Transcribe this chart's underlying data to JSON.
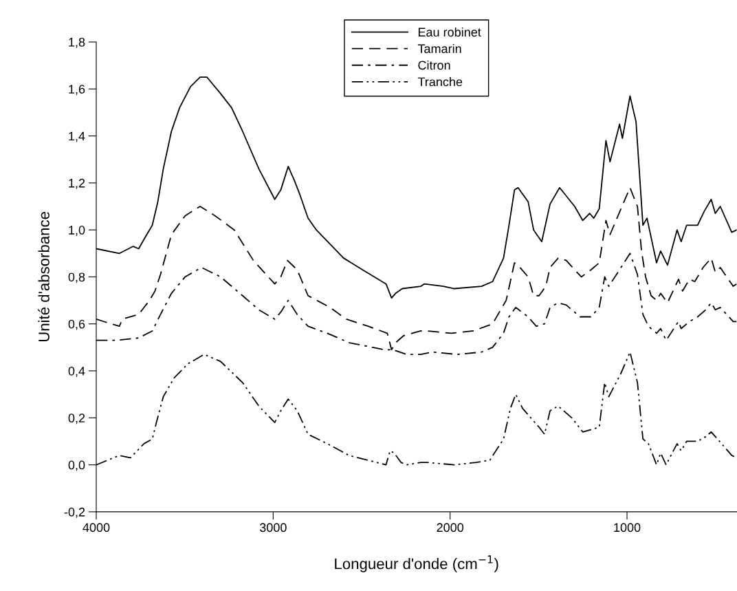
{
  "chart_data": {
    "type": "line",
    "xlabel": "Longueur d'onde (cm$^{−1}$)",
    "ylabel": "Unité d'absorbance",
    "xlim": [
      4000,
      380
    ],
    "xticks": [
      4000,
      3000,
      2000,
      1000
    ],
    "ylim": [
      -0.2,
      1.8
    ],
    "yticks": [
      {
        "value": -0.2,
        "label": "-0,2"
      },
      {
        "value": 0,
        "label": "0,0"
      },
      {
        "value": 0.2,
        "label": "0,2"
      },
      {
        "value": 0.4,
        "label": "0,4"
      },
      {
        "value": 0.6,
        "label": "0,6"
      },
      {
        "value": 0.8,
        "label": "0,8"
      },
      {
        "value": 1.0,
        "label": "1,0"
      },
      {
        "value": 1.2,
        "label": "1,2"
      },
      {
        "value": 1.4,
        "label": "1,4"
      },
      {
        "value": 1.6,
        "label": "1,6"
      },
      {
        "value": 1.8,
        "label": "1,8"
      }
    ],
    "grid": false,
    "legend": "top",
    "marker": "none",
    "series": [
      {
        "name": "Eau robinet",
        "color": "#000000",
        "line_style": "solid",
        "x": [
          4000,
          3869,
          3791,
          3760,
          3730,
          3683,
          3652,
          3621,
          3575,
          3529,
          3467,
          3413,
          3374,
          3297,
          3235,
          3173,
          3081,
          2991,
          2957,
          2915,
          2880,
          2849,
          2803,
          2756,
          2679,
          2602,
          2494,
          2362,
          2331,
          2308,
          2270,
          2165,
          2146,
          2038,
          1976,
          1822,
          1760,
          1698,
          1667,
          1636,
          1616,
          1559,
          1528,
          1482,
          1435,
          1381,
          1296,
          1250,
          1211,
          1188,
          1157,
          1119,
          1096,
          1042,
          1026,
          983,
          949,
          910,
          887,
          833,
          810,
          771,
          717,
          694,
          663,
          601,
          563,
          524,
          501,
          473,
          408,
          380
        ],
        "values": [
          0.92,
          0.9,
          0.93,
          0.92,
          0.96,
          1.02,
          1.12,
          1.26,
          1.42,
          1.52,
          1.61,
          1.65,
          1.65,
          1.58,
          1.52,
          1.42,
          1.26,
          1.13,
          1.17,
          1.27,
          1.21,
          1.15,
          1.05,
          1.0,
          0.94,
          0.88,
          0.83,
          0.77,
          0.71,
          0.73,
          0.75,
          0.76,
          0.77,
          0.76,
          0.75,
          0.76,
          0.78,
          0.88,
          1.02,
          1.17,
          1.18,
          1.12,
          1.0,
          0.95,
          1.11,
          1.18,
          1.1,
          1.04,
          1.07,
          1.05,
          1.09,
          1.38,
          1.29,
          1.45,
          1.39,
          1.57,
          1.46,
          1.02,
          1.05,
          0.86,
          0.91,
          0.85,
          1.0,
          0.95,
          1.02,
          1.02,
          1.08,
          1.13,
          1.07,
          1.1,
          0.99,
          1.0
        ]
      },
      {
        "name": "Tamarin",
        "color": "#000000",
        "line_style": "dashed",
        "x": [
          4000,
          3915,
          3869,
          3853,
          3761,
          3699,
          3668,
          3637,
          3575,
          3498,
          3413,
          3328,
          3220,
          3112,
          2991,
          2957,
          2919,
          2864,
          2803,
          2679,
          2586,
          2463,
          2355,
          2331,
          2308,
          2262,
          2165,
          2131,
          1992,
          1868,
          1760,
          1683,
          1636,
          1605,
          1559,
          1528,
          1497,
          1459,
          1435,
          1389,
          1343,
          1296,
          1258,
          1204,
          1157,
          1119,
          1096,
          1034,
          983,
          941,
          918,
          895,
          864,
          833,
          810,
          771,
          709,
          686,
          647,
          617,
          570,
          524,
          501,
          473,
          400,
          380
        ],
        "values": [
          0.62,
          0.6,
          0.59,
          0.62,
          0.64,
          0.7,
          0.74,
          0.81,
          0.98,
          1.06,
          1.1,
          1.06,
          1.0,
          0.87,
          0.77,
          0.8,
          0.87,
          0.83,
          0.72,
          0.67,
          0.62,
          0.59,
          0.56,
          0.49,
          0.52,
          0.55,
          0.57,
          0.57,
          0.56,
          0.57,
          0.6,
          0.7,
          0.86,
          0.84,
          0.8,
          0.72,
          0.72,
          0.76,
          0.84,
          0.88,
          0.87,
          0.83,
          0.8,
          0.83,
          0.86,
          1.04,
          0.98,
          1.09,
          1.18,
          1.1,
          0.91,
          0.8,
          0.72,
          0.7,
          0.73,
          0.69,
          0.79,
          0.74,
          0.79,
          0.78,
          0.84,
          0.88,
          0.82,
          0.84,
          0.76,
          0.77
        ]
      },
      {
        "name": "Citron",
        "color": "#000000",
        "line_style": "dashdot",
        "x": [
          4000,
          3884,
          3761,
          3683,
          3637,
          3575,
          3498,
          3405,
          3297,
          3173,
          3081,
          2991,
          2957,
          2915,
          2864,
          2803,
          2694,
          2571,
          2370,
          2324,
          2246,
          2165,
          2100,
          1961,
          1822,
          1760,
          1698,
          1667,
          1629,
          1559,
          1513,
          1466,
          1435,
          1389,
          1343,
          1265,
          1204,
          1157,
          1126,
          1103,
          1034,
          983,
          941,
          910,
          879,
          833,
          810,
          779,
          709,
          694,
          647,
          601,
          555,
          524,
          501,
          473,
          400,
          380
        ],
        "values": [
          0.53,
          0.53,
          0.54,
          0.57,
          0.64,
          0.73,
          0.8,
          0.84,
          0.8,
          0.72,
          0.66,
          0.62,
          0.65,
          0.7,
          0.64,
          0.59,
          0.56,
          0.52,
          0.49,
          0.49,
          0.47,
          0.47,
          0.48,
          0.47,
          0.48,
          0.5,
          0.56,
          0.63,
          0.67,
          0.63,
          0.59,
          0.6,
          0.67,
          0.69,
          0.68,
          0.63,
          0.63,
          0.67,
          0.8,
          0.76,
          0.84,
          0.9,
          0.81,
          0.64,
          0.59,
          0.56,
          0.58,
          0.53,
          0.61,
          0.58,
          0.61,
          0.63,
          0.66,
          0.69,
          0.66,
          0.67,
          0.61,
          0.61
        ]
      },
      {
        "name": "Tranche",
        "color": "#000000",
        "line_style": "dashdotdot",
        "x": [
          4000,
          3869,
          3807,
          3730,
          3683,
          3660,
          3621,
          3560,
          3482,
          3390,
          3297,
          3173,
          3081,
          2991,
          2957,
          2915,
          2864,
          2803,
          2694,
          2571,
          2362,
          2339,
          2316,
          2277,
          2246,
          2165,
          2131,
          1976,
          1853,
          1775,
          1698,
          1659,
          1629,
          1590,
          1544,
          1497,
          1466,
          1435,
          1389,
          1312,
          1250,
          1157,
          1126,
          1103,
          1034,
          983,
          941,
          910,
          879,
          833,
          810,
          779,
          717,
          694,
          663,
          601,
          555,
          524,
          477,
          408,
          380
        ],
        "values": [
          0.0,
          0.04,
          0.03,
          0.09,
          0.11,
          0.18,
          0.29,
          0.37,
          0.43,
          0.47,
          0.44,
          0.35,
          0.25,
          0.18,
          0.23,
          0.28,
          0.23,
          0.13,
          0.09,
          0.04,
          0.0,
          0.06,
          0.05,
          0.01,
          0.0,
          0.01,
          0.01,
          0.0,
          0.01,
          0.02,
          0.11,
          0.24,
          0.3,
          0.24,
          0.2,
          0.16,
          0.13,
          0.23,
          0.25,
          0.2,
          0.14,
          0.16,
          0.35,
          0.29,
          0.39,
          0.48,
          0.35,
          0.11,
          0.09,
          0.0,
          0.05,
          0.0,
          0.09,
          0.06,
          0.1,
          0.1,
          0.12,
          0.14,
          0.1,
          0.04,
          0.03
        ]
      }
    ]
  }
}
